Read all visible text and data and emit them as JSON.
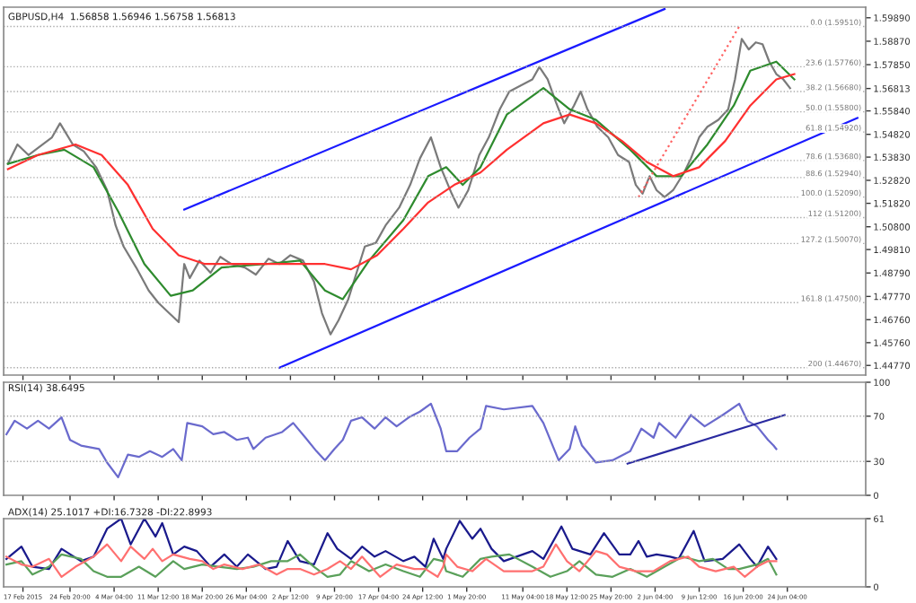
{
  "chart_data": [
    {
      "type": "line",
      "title": "GBPUSD,H4  1.56858 1.56946 1.56758 1.56813",
      "tick_labels": "y",
      "xlim": [
        "2015-02-13T19:00",
        "2015-07-07T05:00"
      ],
      "xticks": [
        {
          "value": "2015-02-17T00:00",
          "label": null
        },
        {
          "value": "2015-02-24T20:00",
          "label": null
        },
        {
          "value": "2015-03-04T04:00",
          "label": null
        },
        {
          "value": "2015-03-11T12:00",
          "label": null
        },
        {
          "value": "2015-03-18T20:00",
          "label": null
        },
        {
          "value": "2015-03-26T04:00",
          "label": null
        },
        {
          "value": "2015-04-02T12:00",
          "label": null
        },
        {
          "value": "2015-04-09T20:00",
          "label": null
        },
        {
          "value": "2015-04-17T04:00",
          "label": null
        },
        {
          "value": "2015-04-24T12:00",
          "label": null
        },
        {
          "value": "2015-05-01T20:00",
          "label": null
        },
        {
          "value": "2015-05-11T04:00",
          "label": null
        },
        {
          "value": "2015-05-18T12:00",
          "label": null
        },
        {
          "value": "2015-05-25T20:00",
          "label": null
        },
        {
          "value": "2015-06-02T04:00",
          "label": null
        },
        {
          "value": "2015-06-09T12:00",
          "label": null
        },
        {
          "value": "2015-06-16T20:00",
          "label": null
        },
        {
          "value": "2015-06-24T04:00",
          "label": null
        }
      ],
      "ylim": [
        1.4435,
        1.6035
      ],
      "yticks": [
        {
          "value": 1.4477,
          "label": "1.44770"
        },
        {
          "value": 1.4576,
          "label": "1.45760"
        },
        {
          "value": 1.4676,
          "label": "1.46760"
        },
        {
          "value": 1.4777,
          "label": "1.47770"
        },
        {
          "value": 1.4879,
          "label": "1.48790"
        },
        {
          "value": 1.4981,
          "label": "1.49810"
        },
        {
          "value": 1.508,
          "label": "1.50800"
        },
        {
          "value": 1.5182,
          "label": "1.51820"
        },
        {
          "value": 1.5282,
          "label": "1.52820"
        },
        {
          "value": 1.5383,
          "label": "1.53830"
        },
        {
          "value": 1.5482,
          "label": "1.54820"
        },
        {
          "value": 1.5584,
          "label": "1.55840"
        },
        {
          "value": 1.56813,
          "label": "1.56813"
        },
        {
          "value": 1.5785,
          "label": "1.57850"
        },
        {
          "value": 1.5887,
          "label": "1.58870"
        },
        {
          "value": 1.5989,
          "label": "1.59890"
        }
      ],
      "ref_lines": [
        {
          "axis": "y",
          "value": 1.5951,
          "label": "0.0 (1.59510)",
          "color": "#aaaaaa",
          "line_style": "dotted"
        },
        {
          "axis": "y",
          "value": 1.5776,
          "label": "23.6 (1.57760)",
          "color": "#aaaaaa",
          "line_style": "dotted"
        },
        {
          "axis": "y",
          "value": 1.5668,
          "label": "38.2 (1.56680)",
          "color": "#aaaaaa",
          "line_style": "dotted"
        },
        {
          "axis": "y",
          "value": 1.558,
          "label": "50.0 (1.55800)",
          "color": "#aaaaaa",
          "line_style": "dotted"
        },
        {
          "axis": "y",
          "value": 1.5492,
          "label": "61.8 (1.54920)",
          "color": "#aaaaaa",
          "line_style": "dotted"
        },
        {
          "axis": "y",
          "value": 1.5368,
          "label": "78.6 (1.53680)",
          "color": "#aaaaaa",
          "line_style": "dotted"
        },
        {
          "axis": "y",
          "value": 1.5294,
          "label": "88.6 (1.52940)",
          "color": "#aaaaaa",
          "line_style": "dotted"
        },
        {
          "axis": "y",
          "value": 1.5209,
          "label": "100.0 (1.52090)",
          "color": "#aaaaaa",
          "line_style": "dotted"
        },
        {
          "axis": "y",
          "value": 1.512,
          "label": "112 (1.51200)",
          "color": "#aaaaaa",
          "line_style": "dotted"
        },
        {
          "axis": "y",
          "value": 1.5007,
          "label": "127.2 (1.50070)",
          "color": "#aaaaaa",
          "line_style": "dotted"
        },
        {
          "axis": "y",
          "value": 1.475,
          "label": "161.8 (1.47500)",
          "color": "#aaaaaa",
          "line_style": "dotted"
        },
        {
          "axis": "y",
          "value": 1.4467,
          "label": "200 (1.44670)",
          "color": "#aaaaaa",
          "line_style": "dotted"
        }
      ],
      "series": [
        {
          "color": "#7a7a7a",
          "x": [
            "2015-02-14T12:00",
            "2015-02-16T02:00",
            "2015-02-17T22:00",
            "2015-02-19T12:00",
            "2015-02-21T20:00",
            "2015-02-23T04:00",
            "2015-02-25T07:00",
            "2015-02-27T03:00",
            "2015-03-01T04:00",
            "2015-03-03T00:00",
            "2015-03-04T10:00",
            "2015-03-05T18:00",
            "2015-03-07T20:00",
            "2015-03-09T22:00",
            "2015-03-11T12:00",
            "2015-03-13T08:00",
            "2015-03-14T22:00",
            "2015-03-15T20:00",
            "2015-03-16T18:00",
            "2015-03-18T09:00",
            "2015-03-20T05:00",
            "2015-03-21T20:00",
            "2015-03-23T16:00",
            "2015-03-25T22:00",
            "2015-03-27T18:00",
            "2015-03-29T20:00",
            "2015-03-31T16:00",
            "2015-04-02T12:00",
            "2015-04-04T14:00",
            "2015-04-06T10:00",
            "2015-04-07T18:00",
            "2015-04-09T04:00",
            "2015-04-10T12:00",
            "2015-04-12T03:00",
            "2015-04-13T12:00",
            "2015-04-14T21:00",
            "2015-04-16T17:00",
            "2015-04-18T08:00",
            "2015-04-20T14:00",
            "2015-04-22T10:00",
            "2015-04-24T01:00",
            "2015-04-25T21:00",
            "2015-04-27T12:00",
            "2015-04-29T08:00",
            "2015-04-30T11:00",
            "2015-05-02T02:00",
            "2015-05-03T22:00",
            "2015-05-05T12:00",
            "2015-05-07T08:00",
            "2015-05-08T22:00",
            "2015-05-12T18:00",
            "2015-05-13T22:00",
            "2015-05-15T07:00",
            "2015-05-16T16:00",
            "2015-05-18T01:00",
            "2015-05-19T16:00",
            "2015-05-20T19:00",
            "2015-05-21T22:00",
            "2015-05-23T13:00",
            "2015-05-25T09:00",
            "2015-05-27T00:00",
            "2015-05-28T20:00",
            "2015-05-29T23:00",
            "2015-05-31T02:00",
            "2015-06-01T06:00",
            "2015-06-02T10:00",
            "2015-06-03T18:00",
            "2015-06-05T04:00",
            "2015-06-07T00:00",
            "2015-06-08T03:00",
            "2015-06-09T12:00",
            "2015-06-10T21:00",
            "2015-06-12T17:00",
            "2015-06-14T08:00",
            "2015-06-15T11:00",
            "2015-06-16T14:00",
            "2015-06-17T18:00",
            "2015-06-18T22:00",
            "2015-06-20T01:00",
            "2015-06-21T04:00",
            "2015-06-22T08:00",
            "2015-06-23T12:00",
            "2015-06-24T15:00"
          ],
          "values": [
            1.5354,
            1.5438,
            1.5392,
            1.5423,
            1.5469,
            1.553,
            1.5438,
            1.5408,
            1.5339,
            1.5239,
            1.5086,
            1.4994,
            1.4903,
            1.4803,
            1.475,
            1.4704,
            1.4665,
            1.4918,
            1.4857,
            1.4933,
            1.488,
            1.4949,
            1.4918,
            1.4903,
            1.4872,
            1.4941,
            1.4918,
            1.4956,
            1.4933,
            1.4842,
            1.4704,
            1.4612,
            1.4673,
            1.4765,
            1.488,
            1.4994,
            1.501,
            1.5086,
            1.5163,
            1.5262,
            1.5377,
            1.5469,
            1.5339,
            1.5224,
            1.5163,
            1.5239,
            1.5392,
            1.5469,
            1.5591,
            1.5668,
            1.5721,
            1.5775,
            1.5721,
            1.5622,
            1.553,
            1.5607,
            1.5668,
            1.5591,
            1.5515,
            1.5469,
            1.5392,
            1.5362,
            1.5262,
            1.5224,
            1.53,
            1.5239,
            1.5209,
            1.5239,
            1.5316,
            1.5377,
            1.5469,
            1.5515,
            1.5545,
            1.5591,
            1.5721,
            1.5897,
            1.5851,
            1.5882,
            1.5874,
            1.5798,
            1.5744,
            1.5721,
            1.5683
          ]
        },
        {
          "color": "#2e8b2e",
          "x": [
            "2015-02-14T12:00",
            "2015-02-19T12:00",
            "2015-02-23T21:00",
            "2015-02-28T18:00",
            "2015-03-04T20:00",
            "2015-03-09T05:00",
            "2015-03-13T14:00",
            "2015-03-17T06:00",
            "2015-03-22T01:00",
            "2015-03-29T09:00",
            "2015-04-04T02:00",
            "2015-04-08T06:00",
            "2015-04-11T05:00",
            "2015-04-15T14:00",
            "2015-04-21T07:00",
            "2015-04-25T10:00",
            "2015-04-28T10:00",
            "2015-05-01T04:00",
            "2015-05-04T03:00",
            "2015-05-08T12:00",
            "2015-05-14T14:00",
            "2015-05-18T23:00",
            "2015-05-23T08:00",
            "2015-05-29T01:00",
            "2015-06-02T10:00",
            "2015-06-06T12:00",
            "2015-06-10T21:00",
            "2015-06-15T06:00",
            "2015-06-18T00:00",
            "2015-06-22T08:00",
            "2015-06-25T08:00"
          ],
          "values": [
            1.5354,
            1.5392,
            1.5415,
            1.5339,
            1.5147,
            1.4918,
            1.478,
            1.4803,
            1.4903,
            1.4918,
            1.4933,
            1.4803,
            1.4765,
            1.4933,
            1.5109,
            1.53,
            1.5339,
            1.5262,
            1.5339,
            1.5568,
            1.5683,
            1.5591,
            1.5545,
            1.5415,
            1.53,
            1.53,
            1.5438,
            1.5607,
            1.5759,
            1.5798,
            1.5721
          ]
        },
        {
          "color": "#ff3030",
          "x": [
            "2015-02-14T12:00",
            "2015-02-19T12:00",
            "2015-02-25T18:00",
            "2015-03-02T02:00",
            "2015-03-06T11:00",
            "2015-03-10T14:00",
            "2015-03-14T22:00",
            "2015-03-19T07:00",
            "2015-03-26T10:00",
            "2015-04-02T12:00",
            "2015-04-08T06:00",
            "2015-04-12T14:00",
            "2015-04-16T22:00",
            "2015-04-21T07:00",
            "2015-04-25T10:00",
            "2015-04-29T18:00",
            "2015-05-04T03:00",
            "2015-05-08T12:00",
            "2015-05-14T14:00",
            "2015-05-18T23:00",
            "2015-05-23T08:00",
            "2015-05-27T16:00",
            "2015-05-31T19:00",
            "2015-06-05T04:00",
            "2015-06-09T12:00",
            "2015-06-13T20:00",
            "2015-06-18T00:00",
            "2015-06-22T08:00",
            "2015-06-25T08:00"
          ],
          "values": [
            1.5331,
            1.5392,
            1.5438,
            1.5392,
            1.5262,
            1.5071,
            1.4956,
            1.4918,
            1.4918,
            1.4918,
            1.4918,
            1.4895,
            1.4956,
            1.5071,
            1.5186,
            1.5262,
            1.5316,
            1.5415,
            1.553,
            1.5568,
            1.553,
            1.5453,
            1.5362,
            1.53,
            1.5339,
            1.5453,
            1.5607,
            1.5721,
            1.5744
          ]
        },
        {
          "color": "#1a1aff",
          "x": [
            "2015-03-15T20:00",
            "2015-06-03T18:00"
          ],
          "values": [
            1.5155,
            1.6027
          ]
        },
        {
          "color": "#1a1aff",
          "x": [
            "2015-03-31T16:00",
            "2015-07-05T20:00"
          ],
          "values": [
            1.4467,
            1.5553
          ]
        },
        {
          "color": "#ff6060",
          "line_style": "dotted",
          "x": [
            "2015-05-30T10:00",
            "2015-06-16T04:00"
          ],
          "values": [
            1.5209,
            1.5951
          ]
        }
      ]
    },
    {
      "type": "line",
      "title": "RSI(14) 38.6495",
      "tick_labels": "y",
      "xlim": [
        "2015-02-13T19:00",
        "2015-07-07T05:00"
      ],
      "xticks": [
        {
          "value": "2015-02-17T00:00",
          "label": null
        },
        {
          "value": "2015-02-24T20:00",
          "label": null
        },
        {
          "value": "2015-03-04T04:00",
          "label": null
        },
        {
          "value": "2015-03-11T12:00",
          "label": null
        },
        {
          "value": "2015-03-18T20:00",
          "label": null
        },
        {
          "value": "2015-03-26T04:00",
          "label": null
        },
        {
          "value": "2015-04-02T12:00",
          "label": null
        },
        {
          "value": "2015-04-09T20:00",
          "label": null
        },
        {
          "value": "2015-04-17T04:00",
          "label": null
        },
        {
          "value": "2015-04-24T12:00",
          "label": null
        },
        {
          "value": "2015-05-01T20:00",
          "label": null
        },
        {
          "value": "2015-05-11T04:00",
          "label": null
        },
        {
          "value": "2015-05-18T12:00",
          "label": null
        },
        {
          "value": "2015-05-25T20:00",
          "label": null
        },
        {
          "value": "2015-06-02T04:00",
          "label": null
        },
        {
          "value": "2015-06-09T12:00",
          "label": null
        },
        {
          "value": "2015-06-16T20:00",
          "label": null
        },
        {
          "value": "2015-06-24T04:00",
          "label": null
        }
      ],
      "ylim": [
        0,
        100
      ],
      "yticks": [
        0,
        30,
        70,
        100
      ],
      "ref_lines": [
        {
          "axis": "y",
          "value": 30,
          "color": "#aaaaaa",
          "line_style": "dotted"
        },
        {
          "axis": "y",
          "value": 70,
          "color": "#aaaaaa",
          "line_style": "dotted"
        }
      ],
      "series": [
        {
          "color": "#6a6acd",
          "x": [
            "2015-02-14T06:00",
            "2015-02-15T15:00",
            "2015-02-17T16:00",
            "2015-02-19T12:00",
            "2015-02-21T08:00",
            "2015-02-23T10:00",
            "2015-02-24T20:00",
            "2015-02-26T16:00",
            "2015-03-01T16:00",
            "2015-03-03T00:00",
            "2015-03-04T20:00",
            "2015-03-06T11:00",
            "2015-03-08T07:00",
            "2015-03-10T03:00",
            "2015-03-12T04:00",
            "2015-03-14T00:00",
            "2015-03-15T10:00",
            "2015-03-16T08:00",
            "2015-03-18T20:00",
            "2015-03-20T16:00",
            "2015-03-22T12:00",
            "2015-03-24T14:00",
            "2015-03-26T10:00",
            "2015-03-27T08:00",
            "2015-03-29T09:00",
            "2015-04-01T03:00",
            "2015-04-02T23:00",
            "2015-04-05T00:00",
            "2015-04-06T20:00",
            "2015-04-08T06:00",
            "2015-04-09T20:00",
            "2015-04-11T05:00",
            "2015-04-12T14:00",
            "2015-04-14T10:00",
            "2015-04-16T12:00",
            "2015-04-18T08:00",
            "2015-04-20T04:00",
            "2015-04-22T05:00",
            "2015-04-24T01:00",
            "2015-04-25T21:00",
            "2015-04-27T12:00",
            "2015-04-28T10:00",
            "2015-04-30T06:00",
            "2015-05-02T07:00",
            "2015-05-04T03:00",
            "2015-05-05T01:00",
            "2015-05-08T00:00",
            "2015-05-12T18:00",
            "2015-05-14T14:00",
            "2015-05-17T03:00",
            "2015-05-18T23:00",
            "2015-05-19T21:00",
            "2015-05-21T00:00",
            "2015-05-23T08:00",
            "2015-05-26T02:00",
            "2015-05-29T01:00",
            "2015-05-30T21:00",
            "2015-06-01T22:00",
            "2015-06-02T20:00",
            "2015-06-05T14:00",
            "2015-06-08T03:00",
            "2015-06-10T10:00",
            "2015-06-13T10:00",
            "2015-06-16T04:00",
            "2015-06-17T12:00",
            "2015-06-19T03:00",
            "2015-06-20T23:00",
            "2015-06-21T21:00",
            "2015-06-22T08:00"
          ],
          "values": [
            54,
            66,
            59,
            66,
            59,
            69,
            49,
            44,
            41,
            29,
            16,
            36,
            34,
            39,
            34,
            41,
            31,
            64,
            61,
            54,
            56,
            49,
            51,
            41,
            51,
            56,
            64,
            51,
            39,
            31,
            41,
            49,
            66,
            69,
            59,
            69,
            61,
            69,
            74,
            81,
            59,
            39,
            39,
            51,
            59,
            79,
            76,
            79,
            64,
            31,
            41,
            61,
            44,
            29,
            31,
            39,
            59,
            51,
            64,
            51,
            71,
            61,
            71,
            81,
            66,
            61,
            49,
            44,
            41
          ]
        },
        {
          "color": "#2a2aa0",
          "x": [
            "2015-05-28T14:00",
            "2015-06-23T17:00"
          ],
          "values": [
            28,
            71
          ]
        }
      ]
    },
    {
      "type": "line",
      "title": "ADX(14) 25.1017 +DI:16.7328 -DI:22.8993",
      "xlim": [
        "2015-02-13T19:00",
        "2015-07-07T05:00"
      ],
      "xticks": [
        {
          "value": "2015-02-17T00:00",
          "label": "17 Feb 2015"
        },
        {
          "value": "2015-02-24T20:00",
          "label": "24 Feb 20:00"
        },
        {
          "value": "2015-03-04T04:00",
          "label": "4 Mar 04:00"
        },
        {
          "value": "2015-03-11T12:00",
          "label": "11 Mar 12:00"
        },
        {
          "value": "2015-03-18T20:00",
          "label": "18 Mar 20:00"
        },
        {
          "value": "2015-03-26T04:00",
          "label": "26 Mar 04:00"
        },
        {
          "value": "2015-04-02T12:00",
          "label": "2 Apr 12:00"
        },
        {
          "value": "2015-04-09T20:00",
          "label": "9 Apr 20:00"
        },
        {
          "value": "2015-04-17T04:00",
          "label": "17 Apr 04:00"
        },
        {
          "value": "2015-04-24T12:00",
          "label": "24 Apr 12:00"
        },
        {
          "value": "2015-05-01T20:00",
          "label": "1 May 20:00"
        },
        {
          "value": "2015-05-11T04:00",
          "label": "11 May 04:00"
        },
        {
          "value": "2015-05-18T12:00",
          "label": "18 May 12:00"
        },
        {
          "value": "2015-05-25T20:00",
          "label": "25 May 20:00"
        },
        {
          "value": "2015-06-02T04:00",
          "label": "2 Jun 04:00"
        },
        {
          "value": "2015-06-09T12:00",
          "label": "9 Jun 12:00"
        },
        {
          "value": "2015-06-16T20:00",
          "label": "16 Jun 20:00"
        },
        {
          "value": "2015-06-24T04:00",
          "label": "24 Jun 04:00"
        }
      ],
      "ylim": [
        0,
        61
      ],
      "yticks": [
        0,
        61
      ],
      "series": [
        {
          "color": "#1a1a8c",
          "x": [
            "2015-02-14T06:00",
            "2015-02-16T18:00",
            "2015-02-18T14:00",
            "2015-02-21T08:00",
            "2015-02-23T10:00",
            "2015-02-26T16:00",
            "2015-02-28T18:00",
            "2015-03-03T00:00",
            "2015-03-05T08:00",
            "2015-03-06T22:00",
            "2015-03-09T05:00",
            "2015-03-11T01:00",
            "2015-03-12T04:00",
            "2015-03-14T00:00",
            "2015-03-15T20:00",
            "2015-03-17T22:00",
            "2015-03-20T05:00",
            "2015-03-22T12:00",
            "2015-03-24T14:00",
            "2015-03-26T10:00",
            "2015-03-29T09:00",
            "2015-03-31T05:00",
            "2015-04-02T01:00",
            "2015-04-04T02:00",
            "2015-04-06T10:00",
            "2015-04-08T16:00",
            "2015-04-10T07:00",
            "2015-04-12T14:00",
            "2015-04-14T10:00",
            "2015-04-16T12:00",
            "2015-04-18T08:00",
            "2015-04-21T07:00",
            "2015-04-23T03:00",
            "2015-04-24T23:00",
            "2015-04-26T08:00",
            "2015-04-27T22:00",
            "2015-04-28T10:00",
            "2015-04-30T16:00",
            "2015-05-02T18:00",
            "2015-05-04T03:00",
            "2015-05-05T23:00",
            "2015-05-08T00:00",
            "2015-05-12T18:00",
            "2015-05-14T14:00",
            "2015-05-17T14:00",
            "2015-05-19T10:00",
            "2015-05-22T10:00",
            "2015-05-24T16:00",
            "2015-05-27T05:00",
            "2015-05-29T01:00",
            "2015-05-30T10:00",
            "2015-05-31T19:00",
            "2015-06-02T10:00",
            "2015-06-04T16:00",
            "2015-06-06T02:00",
            "2015-06-08T14:00",
            "2015-06-10T10:00",
            "2015-06-13T10:00",
            "2015-06-16T04:00",
            "2015-06-18T00:00",
            "2015-06-19T03:00",
            "2015-06-20T23:00",
            "2015-06-22T08:00"
          ],
          "values": [
            25,
            36,
            18,
            16,
            34,
            23,
            27,
            52,
            61,
            38,
            61,
            45,
            57,
            29,
            36,
            32,
            18,
            29,
            18,
            29,
            16,
            18,
            41,
            23,
            20,
            48,
            34,
            25,
            36,
            27,
            32,
            23,
            27,
            18,
            43,
            25,
            34,
            59,
            43,
            52,
            34,
            23,
            32,
            25,
            54,
            34,
            29,
            48,
            29,
            29,
            41,
            27,
            29,
            27,
            25,
            50,
            23,
            25,
            38,
            25,
            18,
            36,
            25
          ]
        },
        {
          "color": "#5aa05a",
          "x": [
            "2015-02-14T06:00",
            "2015-02-16T18:00",
            "2015-02-18T14:00",
            "2015-02-21T08:00",
            "2015-02-23T10:00",
            "2015-02-26T16:00",
            "2015-02-28T18:00",
            "2015-03-03T00:00",
            "2015-03-05T08:00",
            "2015-03-08T07:00",
            "2015-03-11T01:00",
            "2015-03-14T00:00",
            "2015-03-15T20:00",
            "2015-03-18T20:00",
            "2015-03-21T14:00",
            "2015-03-24T14:00",
            "2015-03-27T08:00",
            "2015-03-30T07:00",
            "2015-04-02T01:00",
            "2015-04-04T02:00",
            "2015-04-06T10:00",
            "2015-04-08T16:00",
            "2015-04-10T18:00",
            "2015-04-12T14:00",
            "2015-04-15T14:00",
            "2015-04-18T08:00",
            "2015-04-21T07:00",
            "2015-04-24T01:00",
            "2015-04-26T08:00",
            "2015-04-27T22:00",
            "2015-04-28T10:00",
            "2015-05-01T04:00",
            "2015-05-04T03:00",
            "2015-05-05T23:00",
            "2015-05-08T22:00",
            "2015-05-12T18:00",
            "2015-05-15T18:00",
            "2015-05-18T12:00",
            "2015-05-20T14:00",
            "2015-05-23T08:00",
            "2015-05-26T02:00",
            "2015-05-29T01:00",
            "2015-05-31T19:00",
            "2015-06-03T18:00",
            "2015-06-06T18:00",
            "2015-06-09T12:00",
            "2015-06-11T19:00",
            "2015-06-14T08:00",
            "2015-06-16T04:00",
            "2015-06-19T03:00",
            "2015-06-20T23:00",
            "2015-06-22T08:00"
          ],
          "values": [
            20,
            23,
            11,
            18,
            29,
            25,
            14,
            9,
            9,
            18,
            9,
            23,
            16,
            20,
            18,
            16,
            18,
            23,
            23,
            29,
            18,
            9,
            11,
            23,
            14,
            20,
            14,
            9,
            25,
            23,
            14,
            9,
            25,
            27,
            29,
            18,
            9,
            14,
            23,
            11,
            9,
            16,
            9,
            18,
            27,
            23,
            25,
            16,
            16,
            20,
            25,
            11
          ]
        },
        {
          "color": "#ff7070",
          "x": [
            "2015-02-14T06:00",
            "2015-02-16T18:00",
            "2015-02-18T14:00",
            "2015-02-21T08:00",
            "2015-02-23T10:00",
            "2015-02-25T18:00",
            "2015-02-28T18:00",
            "2015-03-03T00:00",
            "2015-03-05T08:00",
            "2015-03-06T22:00",
            "2015-03-09T05:00",
            "2015-03-10T14:00",
            "2015-03-12T04:00",
            "2015-03-14T00:00",
            "2015-03-16T18:00",
            "2015-03-18T20:00",
            "2015-03-20T16:00",
            "2015-03-22T12:00",
            "2015-03-25T12:00",
            "2015-03-28T06:00",
            "2015-03-31T05:00",
            "2015-04-02T01:00",
            "2015-04-04T02:00",
            "2015-04-06T10:00",
            "2015-04-08T16:00",
            "2015-04-10T18:00",
            "2015-04-12T14:00",
            "2015-04-14T10:00",
            "2015-04-17T10:00",
            "2015-04-20T04:00",
            "2015-04-23T03:00",
            "2015-04-24T23:00",
            "2015-04-27T00:00",
            "2015-04-27T22:00",
            "2015-04-28T10:00",
            "2015-04-30T06:00",
            "2015-05-02T18:00",
            "2015-05-05T01:00",
            "2015-05-08T00:00",
            "2015-05-12T18:00",
            "2015-05-14T14:00",
            "2015-05-16T16:00",
            "2015-05-18T12:00",
            "2015-05-20T14:00",
            "2015-05-23T08:00",
            "2015-05-25T04:00",
            "2015-05-27T05:00",
            "2015-05-29T23:00",
            "2015-06-01T22:00",
            "2015-06-04T16:00",
            "2015-06-07T16:00",
            "2015-06-09T12:00",
            "2015-06-12T06:00",
            "2015-06-15T06:00",
            "2015-06-17T02:00",
            "2015-06-19T03:00",
            "2015-06-20T23:00",
            "2015-06-22T08:00"
          ],
          "values": [
            27,
            20,
            18,
            25,
            9,
            18,
            27,
            38,
            23,
            36,
            25,
            34,
            23,
            29,
            25,
            23,
            16,
            20,
            16,
            20,
            11,
            16,
            16,
            11,
            16,
            23,
            16,
            27,
            9,
            20,
            16,
            16,
            9,
            18,
            29,
            18,
            14,
            25,
            14,
            14,
            18,
            38,
            23,
            14,
            32,
            29,
            18,
            14,
            14,
            23,
            27,
            18,
            14,
            18,
            9,
            18,
            23,
            23
          ]
        }
      ]
    }
  ]
}
